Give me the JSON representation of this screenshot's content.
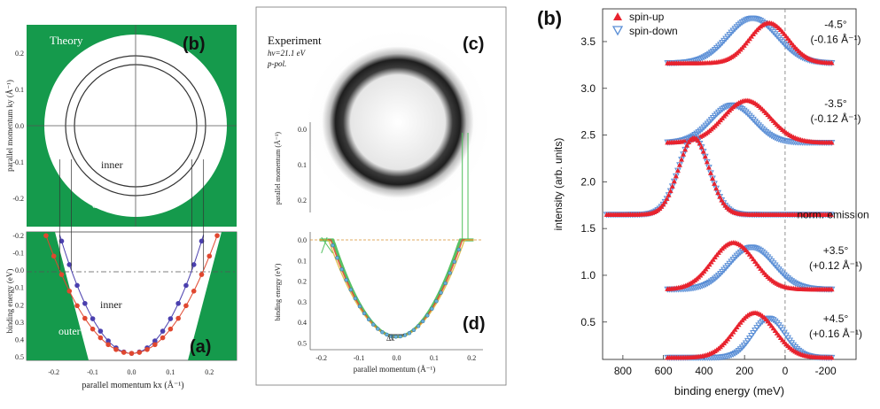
{
  "colors": {
    "green": "#159a4c",
    "spin_up": "#e8232e",
    "spin_down": "#5b8fd6",
    "inner_band": "#4a3fae",
    "outer_band": "#e0472f",
    "guide": "#4fbf5c"
  },
  "panels": {
    "b_theory": {
      "letter": "(b)",
      "label": "Theory",
      "ylabel": "parallel momentum ky (Å⁻¹)",
      "yticks": [
        "0.2",
        "0.1",
        "0.0",
        "-0.1",
        "-0.2"
      ],
      "inner_label": "inner",
      "outer_label": "outer"
    },
    "a_bands": {
      "letter": "(a)",
      "ylabel": "binding energy (eV)",
      "xlabel": "parallel momentum kx (Å⁻¹)",
      "yticks": [
        "-0.2",
        "-0.1",
        "0.0",
        "0.1",
        "0.2",
        "0.3",
        "0.4",
        "0.5"
      ],
      "xticks": [
        "-0.2",
        "-0.1",
        "0.0",
        "0.1",
        "0.2"
      ],
      "inner_label": "inner",
      "outer_label": "outer"
    },
    "c_experiment": {
      "letter": "(c)",
      "title": "Experiment",
      "line2": "hν=21.1 eV",
      "line3": "p-pol.",
      "ylabel": "parallel momentum (Å⁻¹)",
      "yticks": [
        "0.0",
        "0.1",
        "0.2"
      ]
    },
    "d_arpes": {
      "letter": "(d)",
      "ylabel": "binding energy (eV)",
      "xlabel": "parallel momentum (Å⁻¹)",
      "yticks": [
        "0.0",
        "0.1",
        "0.2",
        "0.3",
        "0.4",
        "0.5"
      ],
      "xticks": [
        "-0.2",
        "-0.1",
        "0.0",
        "0.1",
        "0.2"
      ],
      "dk_label": "Δk"
    }
  },
  "chart_data": [
    {
      "type": "line",
      "panel": "(a)",
      "xlabel": "parallel momentum kx (Å⁻¹)",
      "ylabel": "binding energy (eV)",
      "xlim": [
        -0.27,
        0.27
      ],
      "ylim": [
        0.52,
        -0.22
      ],
      "series": [
        {
          "name": "inner",
          "k0": 0,
          "vertex": 0.48,
          "fermi_k": 0.155
        },
        {
          "name": "outer",
          "k0": 0,
          "vertex": 0.48,
          "fermi_k": 0.185
        }
      ]
    },
    {
      "type": "line",
      "panel": "(b) spin-resolved",
      "letter": "(b)",
      "xlabel": "binding energy (meV)",
      "ylabel": "intensity (arb. units)",
      "xlim": [
        900,
        -350
      ],
      "ylim": [
        0.1,
        3.85
      ],
      "xticks": [
        "800",
        "600",
        "400",
        "200",
        "0",
        "-200"
      ],
      "yticks": [
        "0.5",
        "1.0",
        "1.5",
        "2.0",
        "2.5",
        "3.0",
        "3.5"
      ],
      "legend": [
        "spin-up",
        "spin-down"
      ],
      "curves": [
        {
          "label_angle": "-4.5°",
          "label_k": "(-0.16 Å⁻¹)",
          "base": 3.27,
          "up": {
            "center": 80,
            "width": 95,
            "amp": 0.43
          },
          "down": {
            "center": 160,
            "width": 120,
            "amp": 0.48
          }
        },
        {
          "label_angle": "-3.5°",
          "label_k": "(-0.12 Å⁻¹)",
          "base": 2.42,
          "up": {
            "center": 190,
            "width": 115,
            "amp": 0.45
          },
          "down": {
            "center": 260,
            "width": 105,
            "amp": 0.4
          }
        },
        {
          "label_angle": "norm. emission",
          "label_k": "",
          "base": 1.65,
          "up": {
            "center": 450,
            "width": 75,
            "amp": 0.82
          },
          "down": {
            "center": 450,
            "width": 75,
            "amp": 0.82
          }
        },
        {
          "label_angle": "+3.5°",
          "label_k": "(+0.12 Å⁻¹)",
          "base": 0.85,
          "up": {
            "center": 255,
            "width": 105,
            "amp": 0.5
          },
          "down": {
            "center": 165,
            "width": 110,
            "amp": 0.45
          }
        },
        {
          "label_angle": "+4.5°",
          "label_k": "(+0.16 Å⁻¹)",
          "base": 0.12,
          "up": {
            "center": 150,
            "width": 100,
            "amp": 0.48
          },
          "down": {
            "center": 80,
            "width": 80,
            "amp": 0.42
          }
        }
      ]
    }
  ]
}
